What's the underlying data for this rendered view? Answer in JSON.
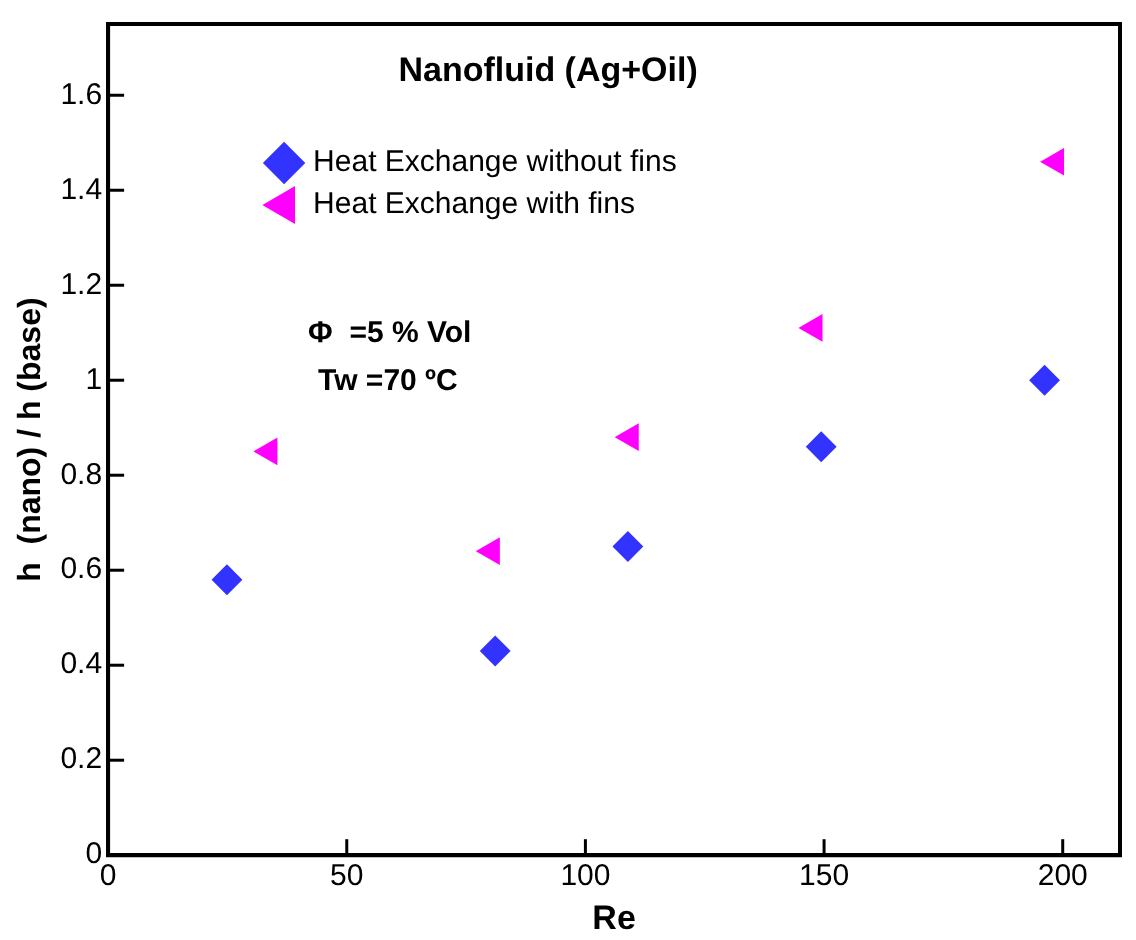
{
  "chart_data": {
    "type": "scatter",
    "title": "Nanofluid (Ag+Oil)",
    "xlabel": "Re",
    "ylabel": "h  (nano) / h (base)",
    "annotations": [
      "Φ  =5 % Vol",
      "Tw =70 ºC"
    ],
    "legend": "top",
    "grid": false,
    "xlim": [
      0,
      212
    ],
    "xticks": [
      0,
      50,
      100,
      150,
      200
    ],
    "ylim": [
      0,
      1.75
    ],
    "yticks": [
      0,
      0.2,
      0.4,
      0.6,
      0.8,
      1,
      1.2,
      1.4,
      1.6
    ],
    "series": [
      {
        "name": "Heat Exchange without fins",
        "color": "#3333ff",
        "marker": "diamond",
        "x": [
          24.9,
          81.1,
          108.9,
          149.4,
          196.2
        ],
        "values": [
          0.58,
          0.43,
          0.65,
          0.86,
          1.0
        ]
      },
      {
        "name": "Heat Exchange with fins",
        "color": "#ff00ff",
        "marker": "triangle",
        "x": [
          33.8,
          80.4,
          109.5,
          148,
          198.6
        ],
        "values": [
          0.85,
          0.64,
          0.88,
          1.11,
          1.46
        ]
      }
    ]
  }
}
